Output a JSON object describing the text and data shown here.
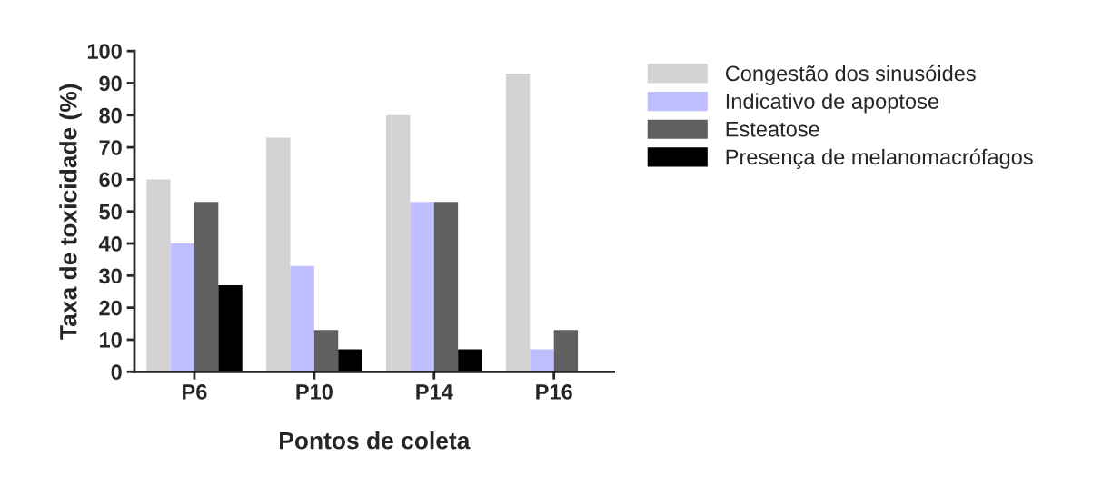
{
  "chart_data": {
    "type": "bar",
    "xlabel": "Pontos de coleta",
    "ylabel": "Taxa de toxicidade (%)",
    "categories": [
      "P6",
      "P10",
      "P14",
      "P16"
    ],
    "series": [
      {
        "name": "Congestão dos sinusóides",
        "color": "#d3d3d3",
        "values": [
          60,
          73,
          80,
          93
        ]
      },
      {
        "name": "Indicativo de apoptose",
        "color": "#bfbfff",
        "values": [
          40,
          33,
          53,
          7
        ]
      },
      {
        "name": "Esteatose",
        "color": "#606060",
        "values": [
          53,
          13,
          53,
          13
        ]
      },
      {
        "name": "Presença de melanomacrófagos",
        "color": "#000000",
        "values": [
          27,
          7,
          7,
          0
        ]
      }
    ],
    "ylim": [
      0,
      100
    ],
    "yticks": [
      0,
      10,
      20,
      30,
      40,
      50,
      60,
      70,
      80,
      90,
      100
    ],
    "grid": false,
    "legend": "top right"
  }
}
